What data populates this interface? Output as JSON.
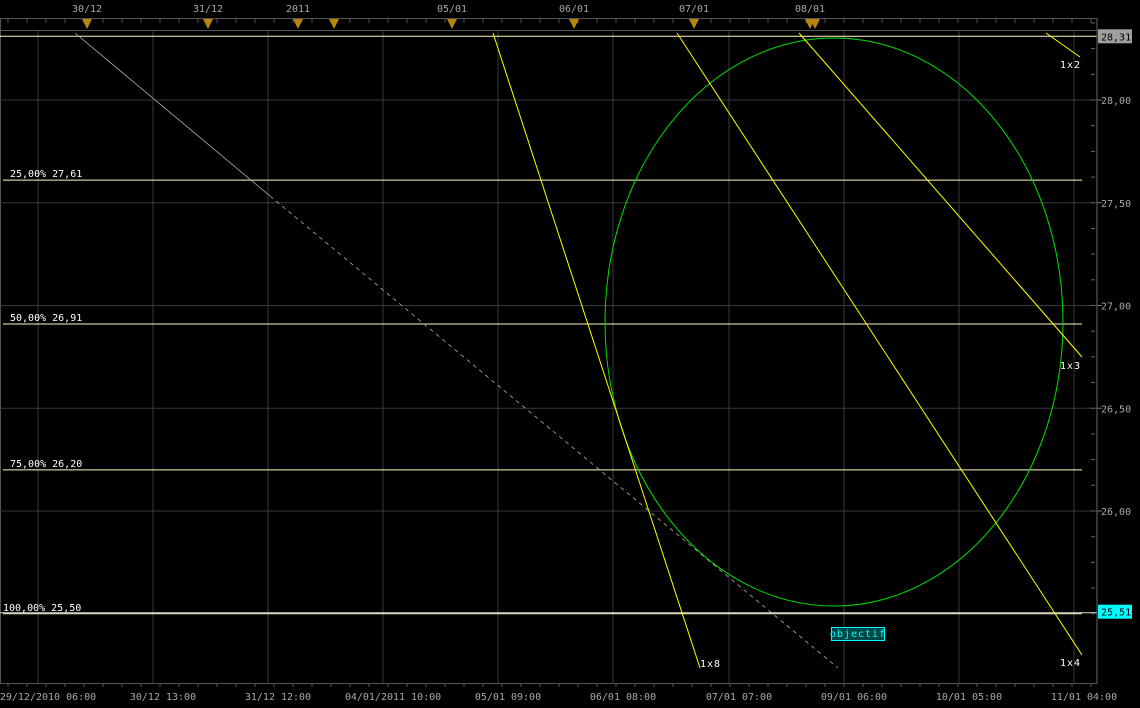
{
  "chart_data": {
    "type": "line",
    "title": "",
    "y_ticks": [
      "28,00",
      "27,50",
      "27,00",
      "26,50",
      "26,00"
    ],
    "y_tick_values": [
      28.0,
      27.5,
      27.0,
      26.5,
      26.0
    ],
    "ylim": [
      25.3,
      28.55
    ],
    "x_ticks": [
      "29/12/2010 06:00",
      "30/12 13:00",
      "31/12 12:00",
      "04/01/2011 10:00",
      "05/01 09:00",
      "06/01 08:00",
      "07/01 07:00",
      "09/01 06:00",
      "10/01 05:00",
      "11/01 04:00"
    ],
    "top_markers": [
      "30/12",
      "31/12",
      "2011",
      "05/01",
      "06/01",
      "07/01",
      "08/01"
    ],
    "price_badges": [
      {
        "label": "28,31",
        "value": 28.31,
        "color": "#a0a0a0"
      },
      {
        "label": "25,51",
        "value": 25.51,
        "color": "#00ffff"
      }
    ],
    "levels": [
      {
        "label": "25,00% 27,61",
        "value": 27.61
      },
      {
        "label": "50,00% 26,91",
        "value": 26.91
      },
      {
        "label": "75,00% 26,20",
        "value": 26.2
      },
      {
        "label": "100,00% 25,50",
        "value": 25.5
      }
    ],
    "top_level": 28.31,
    "gann_lines": [
      {
        "label": "1x8"
      },
      {
        "label": "1x4"
      },
      {
        "label": "1x3"
      },
      {
        "label": "1x2"
      }
    ],
    "annotation": "objectif",
    "grid": true,
    "colors": {
      "background": "#000000",
      "grid": "#3a3a3a",
      "level": "#fff8c0",
      "gann": "#ffff00",
      "circle": "#00e000",
      "trend": "#b0b0b0",
      "marker": "#b8860b",
      "axis_text": "#a8a8a8",
      "objectif": "#00ffff"
    }
  }
}
